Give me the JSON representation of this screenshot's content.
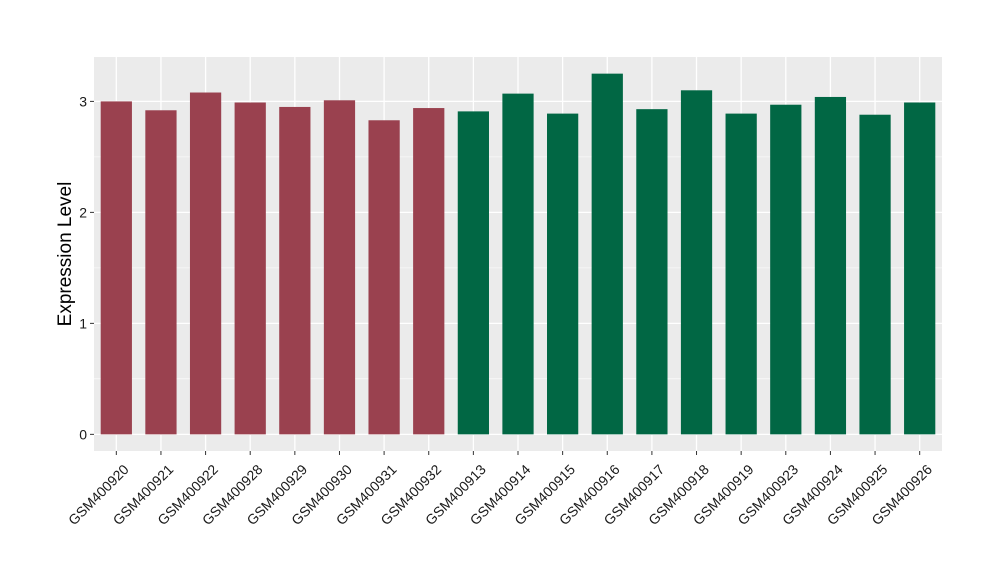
{
  "chart_data": {
    "type": "bar",
    "title": "",
    "xlabel": "",
    "ylabel": "Expression Level",
    "ylim": [
      -0.15,
      3.4
    ],
    "yticks": [
      0,
      1,
      2,
      3
    ],
    "grid": true,
    "categories": [
      "GSM400920",
      "GSM400921",
      "GSM400922",
      "GSM400928",
      "GSM400929",
      "GSM400930",
      "GSM400931",
      "GSM400932",
      "GSM400913",
      "GSM400914",
      "GSM400915",
      "GSM400916",
      "GSM400917",
      "GSM400918",
      "GSM400919",
      "GSM400923",
      "GSM400924",
      "GSM400925",
      "GSM400926"
    ],
    "values": [
      3.0,
      2.92,
      3.08,
      2.99,
      2.95,
      3.01,
      2.83,
      2.94,
      2.91,
      3.07,
      2.89,
      3.25,
      2.93,
      3.1,
      2.89,
      2.97,
      3.04,
      2.88,
      2.99
    ],
    "groups": [
      {
        "count": 8,
        "color": "#9a414f"
      },
      {
        "count": 11,
        "color": "#016744"
      }
    ],
    "panel_background": "#ebebeb",
    "grid_color": "#ffffff"
  }
}
